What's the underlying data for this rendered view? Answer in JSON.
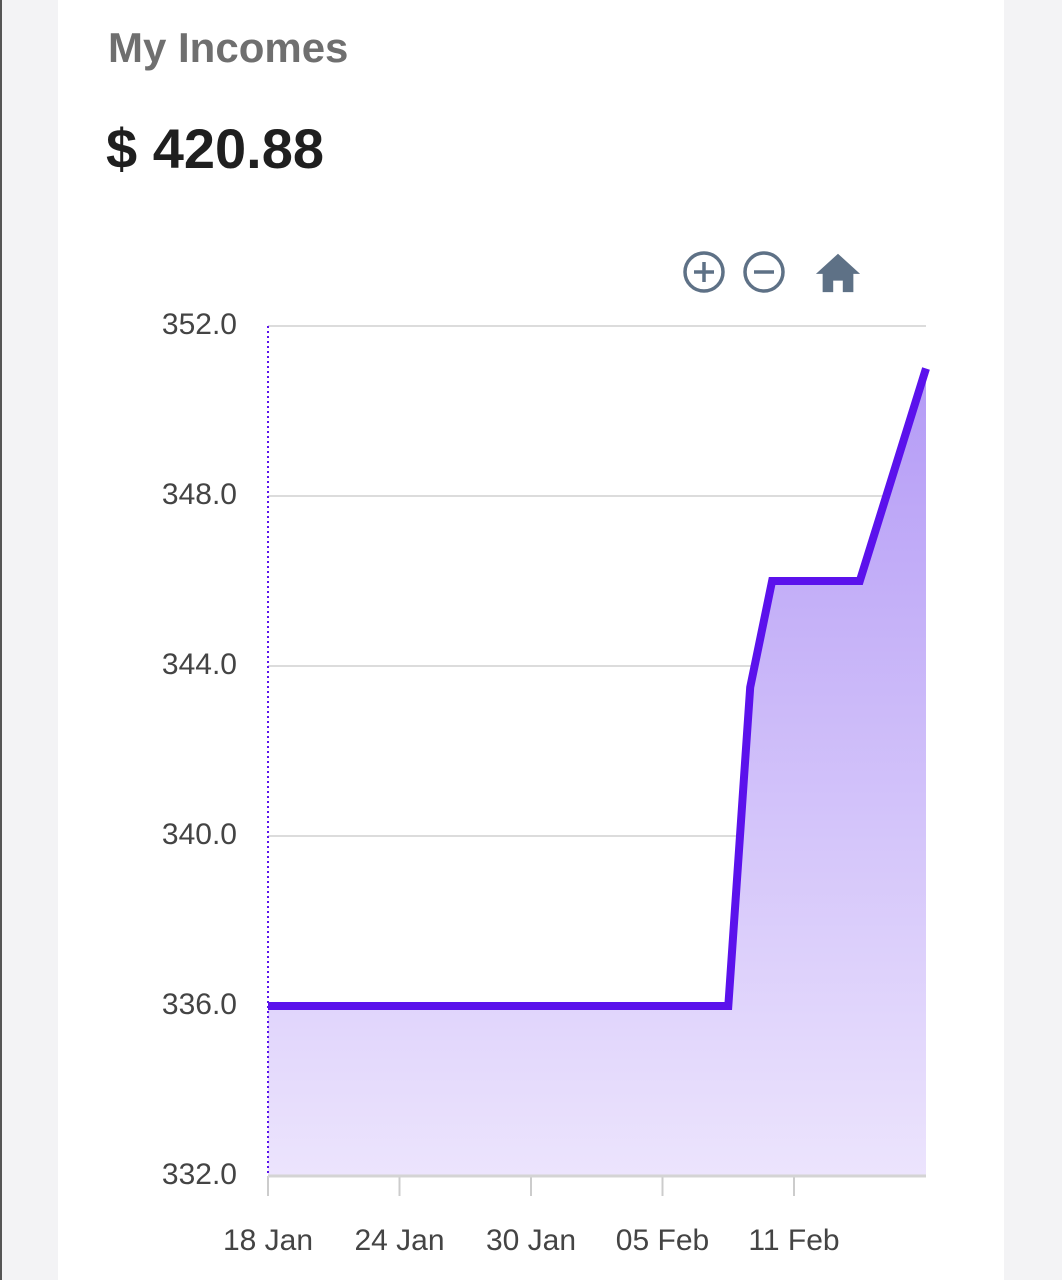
{
  "card": {
    "title": "My Incomes",
    "amount": "$ 420.88"
  },
  "toolbar": {
    "zoom_in_icon": "zoom-in-icon",
    "zoom_out_icon": "zoom-out-icon",
    "home_icon": "home-icon"
  },
  "colors": {
    "line": "#5b12ec",
    "fill_top": "#b49bf6",
    "fill_bottom": "#ece4fd",
    "grid": "#dcdcdc",
    "icon": "#5e7186"
  },
  "chart_data": {
    "type": "area",
    "title": "",
    "xlabel": "",
    "ylabel": "",
    "x_ticks": [
      "18 Jan",
      "24 Jan",
      "30 Jan",
      "05 Feb",
      "11 Feb"
    ],
    "y_ticks": [
      "352.0",
      "348.0",
      "344.0",
      "340.0",
      "336.0",
      "332.0"
    ],
    "x_range": [
      "2024-01-18",
      "2024-02-15"
    ],
    "ylim": [
      332,
      352
    ],
    "grid": true,
    "series": [
      {
        "x": [
          "2024-01-18",
          "2024-02-08",
          "2024-02-09",
          "2024-02-10",
          "2024-02-14",
          "2024-02-15"
        ],
        "values": [
          336.0,
          336.0,
          343.5,
          346.0,
          346.0,
          351.0
        ]
      }
    ]
  }
}
